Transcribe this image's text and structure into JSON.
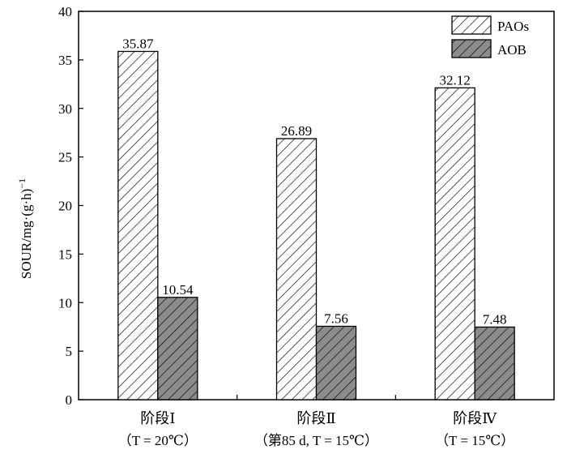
{
  "chart_data": {
    "type": "bar",
    "categories": [
      {
        "line1": "阶段Ⅰ",
        "line2": "（T = 20℃）"
      },
      {
        "line1": "阶段Ⅱ",
        "line2": "（第85 d, T = 15℃）"
      },
      {
        "line1": "阶段Ⅳ",
        "line2": "（T = 15℃）"
      }
    ],
    "series": [
      {
        "name": "PAOs",
        "values": [
          35.87,
          26.89,
          32.12
        ],
        "labels": [
          "35.87",
          "26.89",
          "32.12"
        ],
        "fill": "#ffffff",
        "hatch": "#000000"
      },
      {
        "name": "AOB",
        "values": [
          10.54,
          7.56,
          7.48
        ],
        "labels": [
          "10.54",
          "7.56",
          "7.48"
        ],
        "fill": "#8c8c8c",
        "hatch": "#000000"
      }
    ],
    "ylabel": "SOUR/mg·(g·h)",
    "ylabel_superscript": "−1",
    "ylim": [
      0,
      40
    ],
    "yticks": [
      "0",
      "5",
      "10",
      "15",
      "20",
      "25",
      "30",
      "35",
      "40"
    ],
    "grid": false,
    "legend_position": "top-right"
  }
}
